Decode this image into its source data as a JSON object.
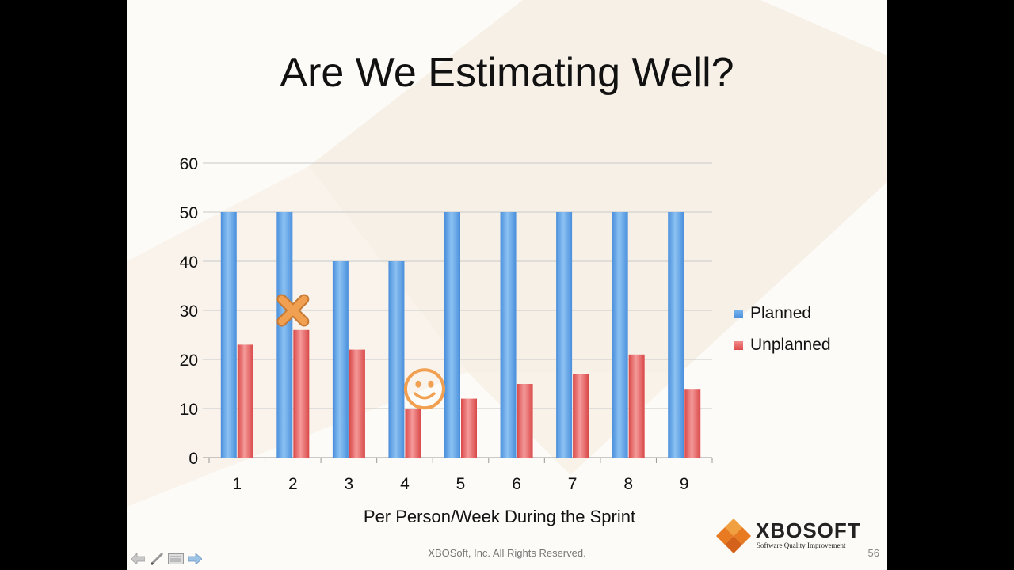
{
  "slide": {
    "title": "Are We Estimating Well?",
    "footer": "XBOSoft, Inc. All Rights Reserved.",
    "page_number": "56",
    "logo": {
      "name": "XBOSOFT",
      "tagline": "Software Quality Improvement"
    }
  },
  "colors": {
    "planned": "#5fa2e6",
    "unplanned": "#e55c5c",
    "accent": "#f0a050"
  },
  "controls": [
    {
      "name": "previous-slide-arrow-icon"
    },
    {
      "name": "pen-tool-icon"
    },
    {
      "name": "slide-menu-icon"
    },
    {
      "name": "next-slide-arrow-icon"
    }
  ],
  "chart_data": {
    "type": "bar",
    "title": "",
    "xlabel": "Per Person/Week During the Sprint",
    "ylabel": "",
    "categories": [
      "1",
      "2",
      "3",
      "4",
      "5",
      "6",
      "7",
      "8",
      "9"
    ],
    "series": [
      {
        "name": "Planned",
        "values": [
          50,
          50,
          40,
          40,
          50,
          50,
          50,
          50,
          50
        ]
      },
      {
        "name": "Unplanned",
        "values": [
          23,
          26,
          22,
          10,
          12,
          15,
          17,
          21,
          14
        ]
      }
    ],
    "ylim": [
      0,
      60
    ],
    "yticks": [
      0,
      10,
      20,
      30,
      40,
      50,
      60
    ],
    "grid": true,
    "legend": "right",
    "annotations": [
      {
        "type": "x-mark",
        "category": "2",
        "y": 30
      },
      {
        "type": "smiley",
        "category": "4",
        "y": 14
      }
    ]
  }
}
